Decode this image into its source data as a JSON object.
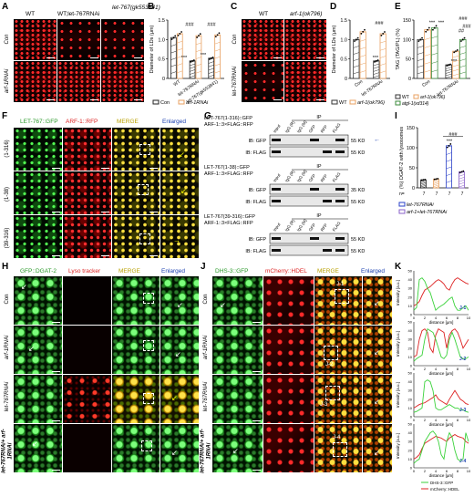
{
  "panels": {
    "A": "A",
    "B": "B",
    "C": "C",
    "D": "D",
    "E": "E",
    "F": "F",
    "G": "G",
    "H": "H",
    "I": "I",
    "J": "J",
    "K": "K"
  },
  "A": {
    "col_wt": "WT",
    "col_rnai": "WT;let-767RNAi",
    "col_mut": "let-767(gk553841)",
    "row_con": "Con",
    "row_arf": "arf-1RNAi"
  },
  "C": {
    "col_wt": "WT",
    "col_mut": "arf-1(ok796)",
    "row_con": "Con",
    "row_rnai": "let-767RNAi"
  },
  "F": {
    "col1": "LET-767::GFP",
    "col2": "ARF-1::RFP",
    "col3": "MERGE",
    "col4": "Enlarged",
    "rows": [
      "(1-316)",
      "(1-38)",
      "(39-316)"
    ]
  },
  "G": {
    "blocks": [
      {
        "title1": "LET-767(1-316)::GFP",
        "title2": "ARF-1::3×FLAG::RFP",
        "ip": "IP",
        "lanes": [
          "Input",
          "IgG (R)",
          "IgG (M)",
          "GFP",
          "RFP",
          "FLAG"
        ],
        "ib1": "IB: GFP",
        "ib2": "IB: FLAG",
        "kd1": "55 KD",
        "kd2": "55 KD"
      },
      {
        "title1": "LET-767(1-38)::GFP",
        "title2": "ARF-1::3×FLAG::RFP",
        "ip": "IP",
        "lanes": [
          "Input",
          "IgG (R)",
          "IgG (M)",
          "GFP",
          "RFP",
          "FLAG"
        ],
        "ib1": "IB: GFP",
        "ib2": "IB: FLAG",
        "kd1": "35 KD",
        "kd2": "55 KD"
      },
      {
        "title1": "LET-767(39-316)::GFP",
        "title2": "ARF-1::3×FLAG::RFP",
        "ip": "IP",
        "lanes": [
          "Input",
          "IgG (R)",
          "IgG (M)",
          "GFP",
          "RFP",
          "FLAG"
        ],
        "ib1": "IB: GFP",
        "ib2": "IB: FLAG",
        "kd1": "55 KD",
        "kd2": "55 KD"
      }
    ]
  },
  "H": {
    "col1": "GFP::DGAT-2",
    "col2": "Lyso tracker",
    "col3": "MERGE",
    "col4": "Enlarged",
    "rows": [
      "Con",
      "arf-1RNAi",
      "let-767RNAi",
      "let-767RNAi+ arf-1RNAi"
    ]
  },
  "J": {
    "col1": "DHS-3::GFP",
    "col2": "mCherry::HDEL",
    "col3": "MERGE",
    "col4": "Enlarged",
    "rows": [
      "Con",
      "arf-1RNAi",
      "let-767RNAi",
      "let-767RNAi+ arf-1RNAi"
    ],
    "boxes": [
      "J-1",
      "J-2",
      "J-3",
      "J-4"
    ]
  },
  "chart_data": [
    {
      "panel": "B",
      "type": "bar",
      "ylabel": "Diameter of LDs (μm)",
      "ylim": [
        0,
        1.5
      ],
      "yticks": [
        "0",
        "0.5",
        "1.0",
        "1.5"
      ],
      "categories": [
        "WT",
        "let-767RNAi",
        "let-767(gk553841)"
      ],
      "series": [
        {
          "name": "Con",
          "values": [
            1.05,
            0.45,
            0.52
          ]
        },
        {
          "name": "arf-1RNAi",
          "values": [
            1.15,
            1.1,
            1.12
          ]
        }
      ],
      "annotations": [
        "***",
        "***",
        "###",
        "###"
      ],
      "legend": [
        "Con",
        "arf-1RNAi"
      ]
    },
    {
      "panel": "D",
      "type": "bar",
      "ylabel": "Diameter of LDs (μm)",
      "ylim": [
        0,
        1.5
      ],
      "yticks": [
        "0",
        "0.5",
        "1.0",
        "1.5"
      ],
      "categories": [
        "Con",
        "let-767RNAi"
      ],
      "series": [
        {
          "name": "WT",
          "values": [
            1.0,
            0.45
          ]
        },
        {
          "name": "arf-1(ok796)",
          "values": [
            1.2,
            1.15
          ]
        }
      ],
      "annotations": [
        "***",
        "###"
      ],
      "legend": [
        "WT",
        "arf-1(ok796)"
      ]
    },
    {
      "panel": "E",
      "type": "bar",
      "ylabel": "TAG (TAG/PL) (%)",
      "ylim": [
        0,
        150
      ],
      "yticks": [
        "0",
        "50",
        "100",
        "150"
      ],
      "categories": [
        "Con",
        "let-767RNAi"
      ],
      "series": [
        {
          "name": "WT",
          "values": [
            100,
            35
          ]
        },
        {
          "name": "arf-1(ok796)",
          "values": [
            125,
            70
          ]
        },
        {
          "name": "atgl-1(xd314)",
          "values": [
            130,
            100
          ]
        }
      ],
      "annotations": [
        "***",
        "***",
        "***",
        "###",
        "##",
        "###"
      ],
      "legend": [
        "WT",
        "arf-1(ok796)",
        "atgl-1(xd314)"
      ]
    },
    {
      "panel": "I",
      "type": "bar",
      "ylabel": "(%) DGAT-2 with lysosomes",
      "ylim": [
        0,
        150
      ],
      "yticks": [
        "0",
        "50",
        "100",
        "150"
      ],
      "categories": [
        "Con",
        "arf-1RNAi",
        "let-767RNAi",
        "arf-1+let-767RNAi"
      ],
      "values": [
        20,
        22,
        105,
        40
      ],
      "n": [
        "7",
        "7",
        "7",
        "7"
      ],
      "n_label": "n=",
      "annotations": [
        "***",
        "###"
      ],
      "legend": [
        "let-767RNAi",
        "arf-1+let-767RNAi"
      ]
    },
    {
      "panel": "K",
      "type": "line",
      "xlabel": "distance [μm]",
      "ylabel": "Intensity [a.u.]",
      "ylim": [
        0,
        50
      ],
      "yticks": [
        "0",
        "10",
        "20",
        "30",
        "40",
        "50"
      ],
      "xticks": [
        "0",
        "2",
        "4",
        "6",
        "8",
        "10"
      ],
      "plots": [
        {
          "label": "J-1",
          "green": [
            5,
            8,
            40,
            42,
            38,
            30,
            25,
            15,
            5,
            8,
            10,
            12,
            15,
            18,
            20,
            10,
            5,
            5,
            8,
            10,
            5
          ],
          "red": [
            10,
            12,
            15,
            22,
            28,
            30,
            32,
            35,
            38,
            40,
            38,
            35,
            30,
            28,
            35,
            40,
            42,
            40,
            38,
            36,
            35
          ]
        },
        {
          "label": "J-2",
          "green": [
            5,
            8,
            10,
            12,
            30,
            42,
            40,
            38,
            30,
            20,
            10,
            8,
            12,
            30,
            38,
            30,
            20,
            10,
            8,
            8,
            10
          ],
          "red": [
            10,
            12,
            30,
            40,
            42,
            38,
            20,
            15,
            35,
            42,
            40,
            38,
            20,
            35,
            40,
            42,
            38,
            30,
            20,
            25,
            30
          ]
        },
        {
          "label": "J-3",
          "green": [
            5,
            6,
            8,
            10,
            40,
            42,
            40,
            30,
            10,
            8,
            8,
            10,
            12,
            14,
            12,
            10,
            10,
            8,
            8,
            6,
            5
          ],
          "red": [
            10,
            12,
            14,
            15,
            16,
            18,
            20,
            22,
            25,
            20,
            18,
            16,
            14,
            20,
            25,
            30,
            25,
            20,
            18,
            15,
            14
          ]
        },
        {
          "label": "J-4",
          "green": [
            5,
            8,
            10,
            20,
            30,
            35,
            40,
            42,
            38,
            30,
            15,
            10,
            30,
            40,
            35,
            20,
            10,
            8,
            10,
            40,
            30
          ],
          "red": [
            10,
            12,
            15,
            22,
            28,
            30,
            32,
            34,
            36,
            35,
            34,
            32,
            30,
            34,
            36,
            38,
            36,
            35,
            34,
            30,
            28
          ]
        }
      ],
      "legend": [
        "DHS-3::GFP",
        "mCherry::HDEL"
      ]
    }
  ]
}
